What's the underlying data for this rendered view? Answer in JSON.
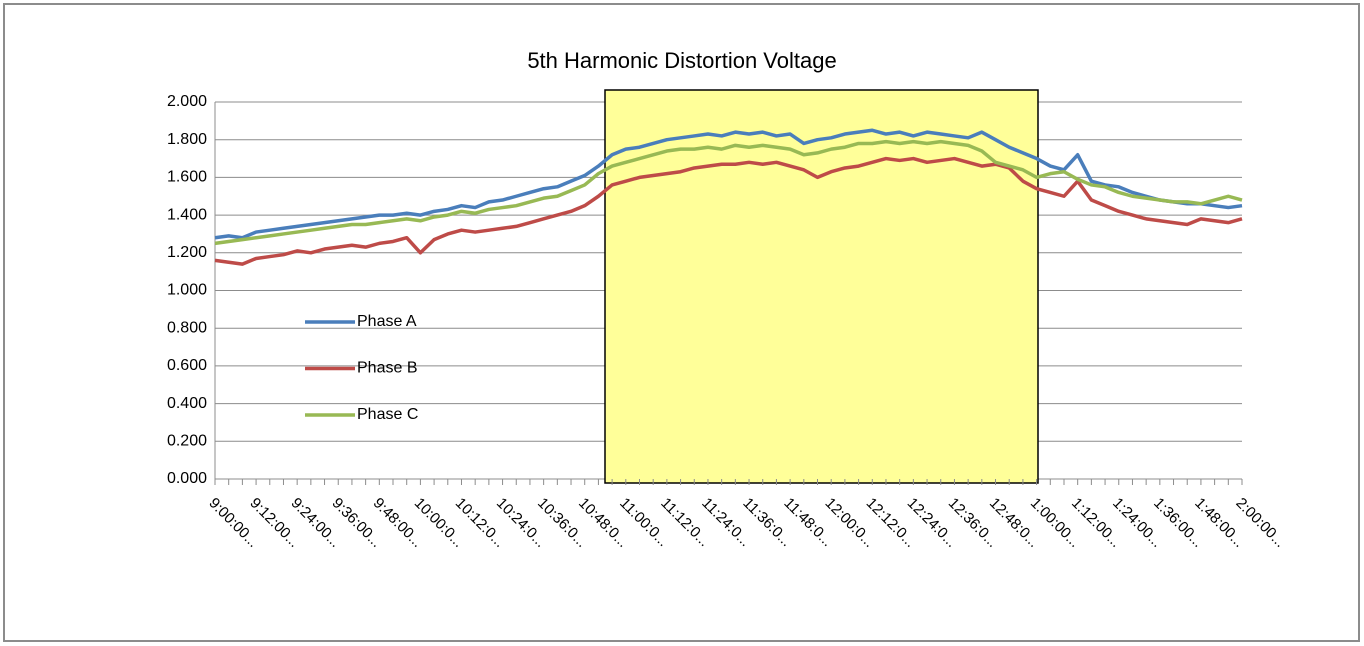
{
  "chart_data": {
    "type": "line",
    "title": "5th Harmonic Distortion Voltage",
    "categories": [
      "9:00:00...",
      null,
      null,
      "9:12:00...",
      null,
      null,
      "9:24:00...",
      null,
      null,
      "9:36:00...",
      null,
      null,
      "9:48:00...",
      null,
      null,
      "10:00:0...",
      null,
      null,
      "10:12:0...",
      null,
      null,
      "10:24:0...",
      null,
      null,
      "10:36:0...",
      null,
      null,
      "10:48:0...",
      null,
      null,
      "11:00:0...",
      null,
      null,
      "11:12:0...",
      null,
      null,
      "11:24:0...",
      null,
      null,
      "11:36:0...",
      null,
      null,
      "11:48:0...",
      null,
      null,
      "12:00:0...",
      null,
      null,
      "12:12:0...",
      null,
      null,
      "12:24:0...",
      null,
      null,
      "12:36:0...",
      null,
      null,
      "12:48:0...",
      null,
      null,
      "1:00:00...",
      null,
      null,
      "1:12:00...",
      null,
      null,
      "1:24:00...",
      null,
      null,
      "1:36:00...",
      null,
      null,
      "1:48:00...",
      null,
      null,
      "2:00:00..."
    ],
    "series": [
      {
        "name": "Phase A",
        "color": "#4a7ebb",
        "values": [
          1.28,
          1.29,
          1.28,
          1.31,
          1.32,
          1.33,
          1.34,
          1.35,
          1.36,
          1.37,
          1.38,
          1.39,
          1.4,
          1.4,
          1.41,
          1.4,
          1.42,
          1.43,
          1.45,
          1.44,
          1.47,
          1.48,
          1.5,
          1.52,
          1.54,
          1.55,
          1.58,
          1.61,
          1.66,
          1.72,
          1.75,
          1.76,
          1.78,
          1.8,
          1.81,
          1.82,
          1.83,
          1.82,
          1.84,
          1.83,
          1.84,
          1.82,
          1.83,
          1.78,
          1.8,
          1.81,
          1.83,
          1.84,
          1.85,
          1.83,
          1.84,
          1.82,
          1.84,
          1.83,
          1.82,
          1.81,
          1.84,
          1.8,
          1.76,
          1.73,
          1.7,
          1.66,
          1.64,
          1.72,
          1.58,
          1.56,
          1.55,
          1.52,
          1.5,
          1.48,
          1.47,
          1.46,
          1.46,
          1.45,
          1.44,
          1.45
        ]
      },
      {
        "name": "Phase B",
        "color": "#be4b48",
        "values": [
          1.16,
          1.15,
          1.14,
          1.17,
          1.18,
          1.19,
          1.21,
          1.2,
          1.22,
          1.23,
          1.24,
          1.23,
          1.25,
          1.26,
          1.28,
          1.2,
          1.27,
          1.3,
          1.32,
          1.31,
          1.32,
          1.33,
          1.34,
          1.36,
          1.38,
          1.4,
          1.42,
          1.45,
          1.5,
          1.56,
          1.58,
          1.6,
          1.61,
          1.62,
          1.63,
          1.65,
          1.66,
          1.67,
          1.67,
          1.68,
          1.67,
          1.68,
          1.66,
          1.64,
          1.6,
          1.63,
          1.65,
          1.66,
          1.68,
          1.7,
          1.69,
          1.7,
          1.68,
          1.69,
          1.7,
          1.68,
          1.66,
          1.67,
          1.65,
          1.58,
          1.54,
          1.52,
          1.5,
          1.58,
          1.48,
          1.45,
          1.42,
          1.4,
          1.38,
          1.37,
          1.36,
          1.35,
          1.38,
          1.37,
          1.36,
          1.38
        ]
      },
      {
        "name": "Phase C",
        "color": "#98b954",
        "values": [
          1.25,
          1.26,
          1.27,
          1.28,
          1.29,
          1.3,
          1.31,
          1.32,
          1.33,
          1.34,
          1.35,
          1.35,
          1.36,
          1.37,
          1.38,
          1.37,
          1.39,
          1.4,
          1.42,
          1.41,
          1.43,
          1.44,
          1.45,
          1.47,
          1.49,
          1.5,
          1.53,
          1.56,
          1.62,
          1.66,
          1.68,
          1.7,
          1.72,
          1.74,
          1.75,
          1.75,
          1.76,
          1.75,
          1.77,
          1.76,
          1.77,
          1.76,
          1.75,
          1.72,
          1.73,
          1.75,
          1.76,
          1.78,
          1.78,
          1.79,
          1.78,
          1.79,
          1.78,
          1.79,
          1.78,
          1.77,
          1.74,
          1.68,
          1.66,
          1.64,
          1.6,
          1.62,
          1.63,
          1.59,
          1.56,
          1.55,
          1.52,
          1.5,
          1.49,
          1.48,
          1.47,
          1.47,
          1.46,
          1.48,
          1.5,
          1.48
        ]
      }
    ],
    "ylim": [
      0,
      2
    ],
    "yticks": [
      {
        "value": 0,
        "label": "0.000"
      },
      {
        "value": 0.2,
        "label": "0.200"
      },
      {
        "value": 0.4,
        "label": "0.400"
      },
      {
        "value": 0.6,
        "label": "0.600"
      },
      {
        "value": 0.8,
        "label": "0.800"
      },
      {
        "value": 1,
        "label": "1.000"
      },
      {
        "value": 1.2,
        "label": "1.200"
      },
      {
        "value": 1.4,
        "label": "1.400"
      },
      {
        "value": 1.6,
        "label": "1.600"
      },
      {
        "value": 1.8,
        "label": "1.800"
      },
      {
        "value": 2,
        "label": "2.000"
      }
    ],
    "grid": true,
    "legend": "left"
  }
}
